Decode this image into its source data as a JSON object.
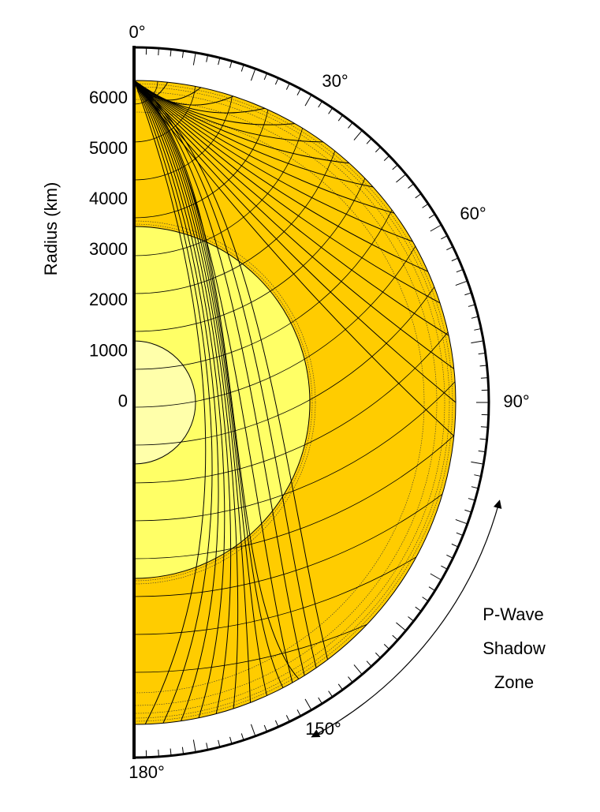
{
  "angle_labels": [
    "0°",
    "30°",
    "60°",
    "90°",
    "150°",
    "180°"
  ],
  "radius_axis": {
    "title": "Radius (km)",
    "ticks": [
      "6000",
      "5000",
      "4000",
      "3000",
      "2000",
      "1000",
      "0"
    ]
  },
  "shadow_zone": {
    "lines": [
      "P-Wave",
      "Shadow",
      "Zone"
    ]
  }
}
